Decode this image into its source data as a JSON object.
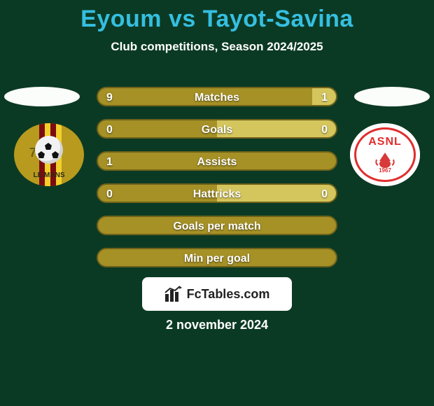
{
  "colors": {
    "page_bg": "#0b3a24",
    "title": "#35bfe0",
    "text": "#ffffff",
    "bar_bg": "#a59126",
    "bar_border": "#6f621a",
    "bar_alt": "#d4c65d",
    "chip_bg": "#ffffff",
    "chip_text": "#222222",
    "dot": "#fbfdfa",
    "crest_left_bg": "#b79a1e",
    "crest_stripe_r": "#7a0d11",
    "crest_stripe_y": "#f2cf2a",
    "crest_right_bg": "#ffffff"
  },
  "title": "Eyoum vs Tayot-Savina",
  "subtitle": "Club competitions, Season 2024/2025",
  "bars": [
    {
      "label": "Matches",
      "left": "9",
      "right": "1",
      "left_pct": 90,
      "right_pct": 10,
      "show_vals": true
    },
    {
      "label": "Goals",
      "left": "0",
      "right": "0",
      "left_pct": 50,
      "right_pct": 50,
      "show_vals": true
    },
    {
      "label": "Assists",
      "left": "1",
      "right": "",
      "left_pct": 100,
      "right_pct": 0,
      "show_vals": true
    },
    {
      "label": "Hattricks",
      "left": "0",
      "right": "0",
      "left_pct": 50,
      "right_pct": 50,
      "show_vals": true
    },
    {
      "label": "Goals per match",
      "left": "",
      "right": "",
      "left_pct": 100,
      "right_pct": 0,
      "show_vals": false
    },
    {
      "label": "Min per goal",
      "left": "",
      "right": "",
      "left_pct": 100,
      "right_pct": 0,
      "show_vals": false
    }
  ],
  "brand": {
    "text": "FcTables.com"
  },
  "date": "2 november 2024",
  "crest_left": {
    "txt": "LE MANS",
    "num": "72"
  },
  "crest_right": {
    "txt": "ASNL",
    "year": "1967"
  }
}
